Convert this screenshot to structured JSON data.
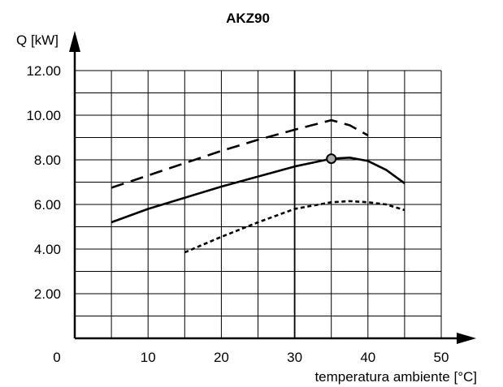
{
  "chart_data": {
    "type": "line",
    "title": "AKZ90",
    "ylabel": "Q [kW]",
    "xlabel": "temperatura ambiente [°C]",
    "xlim": [
      0,
      50
    ],
    "ylim": [
      0,
      12
    ],
    "x_ticks": [
      {
        "value": 0,
        "label": "0"
      },
      {
        "value": 10,
        "label": "10"
      },
      {
        "value": 20,
        "label": "20"
      },
      {
        "value": 30,
        "label": "30"
      },
      {
        "value": 40,
        "label": "40"
      },
      {
        "value": 50,
        "label": "50"
      }
    ],
    "y_ticks": [
      {
        "value": 2,
        "label": "2.00"
      },
      {
        "value": 4,
        "label": "4.00"
      },
      {
        "value": 6,
        "label": "6.00"
      },
      {
        "value": 8,
        "label": "8.00"
      },
      {
        "value": 10,
        "label": "10.00"
      },
      {
        "value": 12,
        "label": "12.00"
      }
    ],
    "grid": true,
    "series": [
      {
        "style": "dashed",
        "x": [
          5,
          10,
          15,
          20,
          25,
          30,
          35,
          37.5,
          40
        ],
        "y": [
          6.75,
          7.3,
          7.85,
          8.4,
          8.9,
          9.35,
          9.78,
          9.55,
          9.1
        ]
      },
      {
        "style": "solid",
        "x": [
          5,
          10,
          15,
          20,
          25,
          30,
          35,
          37.5,
          40,
          42.5,
          45
        ],
        "y": [
          5.2,
          5.8,
          6.3,
          6.8,
          7.25,
          7.7,
          8.05,
          8.1,
          7.95,
          7.55,
          6.95
        ]
      },
      {
        "style": "dotted",
        "x": [
          15,
          20,
          25,
          30,
          35,
          37.5,
          40,
          42.5,
          45
        ],
        "y": [
          3.85,
          4.55,
          5.2,
          5.8,
          6.1,
          6.15,
          6.1,
          6.0,
          5.75
        ]
      }
    ],
    "marker": {
      "x": 35,
      "y": 8.05
    }
  }
}
